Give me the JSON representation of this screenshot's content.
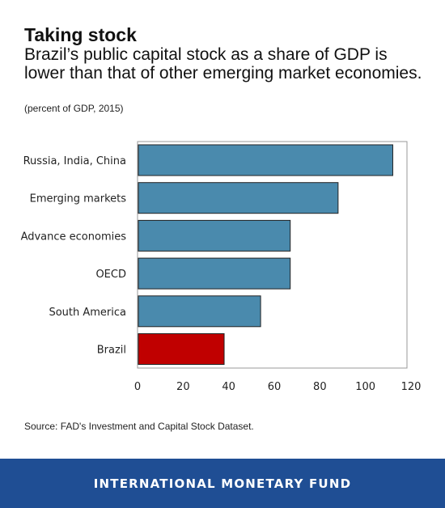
{
  "header": {
    "title": "Taking stock",
    "subtitle": "Brazil’s public capital stock as a share of GDP is lower than that of other emerging market economies.",
    "note": "(percent of GDP, 2015)"
  },
  "chart_data": {
    "type": "bar",
    "orientation": "horizontal",
    "categories": [
      "Russia, India, China",
      "Emerging markets",
      "Advance economies",
      "OECD",
      "South America",
      "Brazil"
    ],
    "values": [
      112,
      88,
      67,
      67,
      54,
      38
    ],
    "xlim": [
      0,
      120
    ],
    "xticks": [
      0,
      20,
      40,
      60,
      80,
      100,
      120
    ],
    "grid": false,
    "colors": {
      "default": "#4a8aad",
      "highlight": "#c00000",
      "highlight_category": "Brazil"
    }
  },
  "source": "Source: FAD's Investment and Capital Stock Dataset.",
  "footer": {
    "org": "INTERNATIONAL MONETARY FUND",
    "background": "#1f4e94"
  }
}
